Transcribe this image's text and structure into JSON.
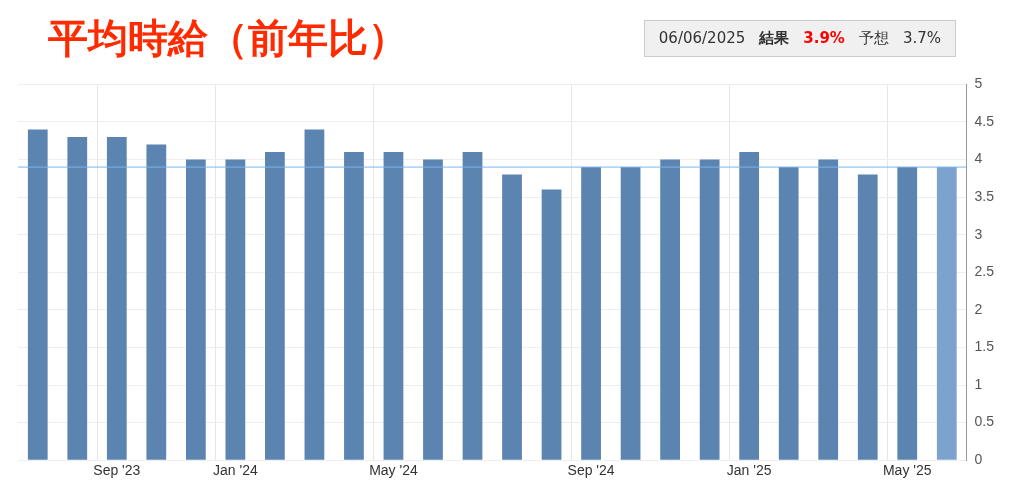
{
  "chart_data": {
    "type": "bar",
    "title": "平均時給（前年比）",
    "categories": [
      null,
      null,
      "Sep '23",
      null,
      null,
      "Jan '24",
      null,
      null,
      null,
      "May '24",
      null,
      null,
      null,
      null,
      "Sep '24",
      null,
      null,
      null,
      "Jan '25",
      null,
      null,
      null,
      "May '25",
      null
    ],
    "values": [
      4.4,
      4.3,
      4.3,
      4.2,
      4.0,
      4.0,
      4.1,
      4.4,
      4.1,
      4.1,
      4.0,
      4.1,
      3.8,
      3.6,
      3.9,
      3.9,
      4.0,
      4.0,
      4.1,
      3.9,
      4.0,
      3.8,
      3.9,
      3.9
    ],
    "colors": [
      "#5b84b1",
      "#5b84b1",
      "#5b84b1",
      "#5b84b1",
      "#5b84b1",
      "#5b84b1",
      "#5b84b1",
      "#5b84b1",
      "#5b84b1",
      "#5b84b1",
      "#5b84b1",
      "#5b84b1",
      "#5b84b1",
      "#5b84b1",
      "#5b84b1",
      "#5b84b1",
      "#5b84b1",
      "#5b84b1",
      "#5b84b1",
      "#5b84b1",
      "#5b84b1",
      "#5b84b1",
      "#5b84b1",
      "#7ba3cd"
    ],
    "ylim": [
      0,
      5
    ],
    "yticks": [
      0,
      0.5,
      1,
      1.5,
      2,
      2.5,
      3,
      3.5,
      4,
      4.5,
      5
    ],
    "grid": true,
    "ref_lines": [
      {
        "axis": "y",
        "value": 3.9,
        "color": "#7cb5ec"
      }
    ],
    "annotations": [
      "06/06/2025",
      "結果",
      "3.9%",
      "予想",
      "3.7%"
    ]
  }
}
